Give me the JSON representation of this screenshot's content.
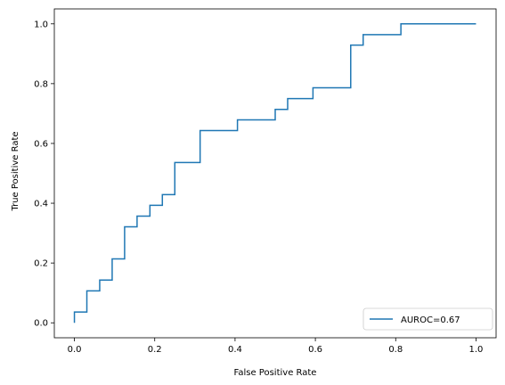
{
  "chart_data": {
    "type": "line",
    "xlabel": "False Positive Rate",
    "ylabel": "True Positive Rate",
    "xlim": [
      -0.05,
      1.05
    ],
    "ylim": [
      -0.05,
      1.05
    ],
    "xticks": [
      "0.0",
      "0.2",
      "0.4",
      "0.6",
      "0.8",
      "1.0"
    ],
    "yticks": [
      "0.0",
      "0.2",
      "0.4",
      "0.6",
      "0.8",
      "1.0"
    ],
    "grid": false,
    "legend_position": "lower-right",
    "series": [
      {
        "name": "AUROC=0.67",
        "color": "#1f77b4",
        "drawstyle": "step",
        "x": [
          0.0,
          0.0,
          0.031,
          0.031,
          0.063,
          0.063,
          0.094,
          0.094,
          0.125,
          0.125,
          0.156,
          0.156,
          0.188,
          0.188,
          0.219,
          0.219,
          0.25,
          0.25,
          0.313,
          0.313,
          0.406,
          0.406,
          0.5,
          0.5,
          0.531,
          0.531,
          0.594,
          0.594,
          0.688,
          0.688,
          0.719,
          0.719,
          0.813,
          0.813,
          1.0
        ],
        "y": [
          0.0,
          0.036,
          0.036,
          0.107,
          0.107,
          0.143,
          0.143,
          0.214,
          0.214,
          0.321,
          0.321,
          0.357,
          0.357,
          0.393,
          0.393,
          0.429,
          0.429,
          0.536,
          0.536,
          0.643,
          0.643,
          0.679,
          0.679,
          0.714,
          0.714,
          0.75,
          0.75,
          0.786,
          0.786,
          0.929,
          0.929,
          0.964,
          0.964,
          1.0,
          1.0
        ]
      }
    ]
  }
}
